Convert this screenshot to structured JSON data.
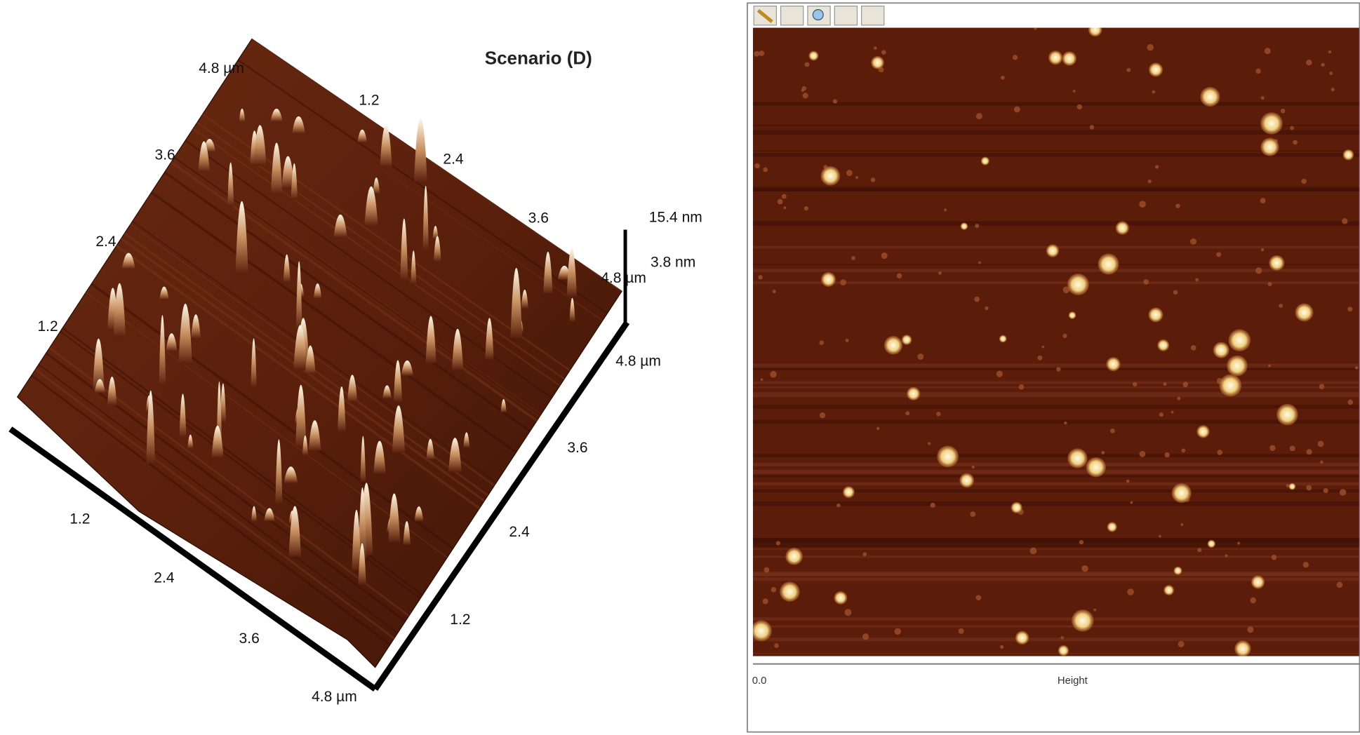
{
  "left_panel": {
    "title": "Scenario (D)",
    "back_left_axis": [
      "4.8 µm",
      "3.6",
      "2.4",
      "1.2"
    ],
    "back_right_axis": [
      "1.2",
      "2.4",
      "3.6",
      "4.8 µm"
    ],
    "z_axis": [
      "15.4 nm",
      "3.8 nm"
    ],
    "front_right_axis": [
      "4.8 µm",
      "3.6",
      "2.4",
      "1.2"
    ],
    "front_left_axis": [
      "1.2",
      "2.4",
      "3.6",
      "4.8 µm"
    ]
  },
  "right_panel": {
    "colorbar_min": "0.0",
    "colorbar_label": "Height"
  }
}
